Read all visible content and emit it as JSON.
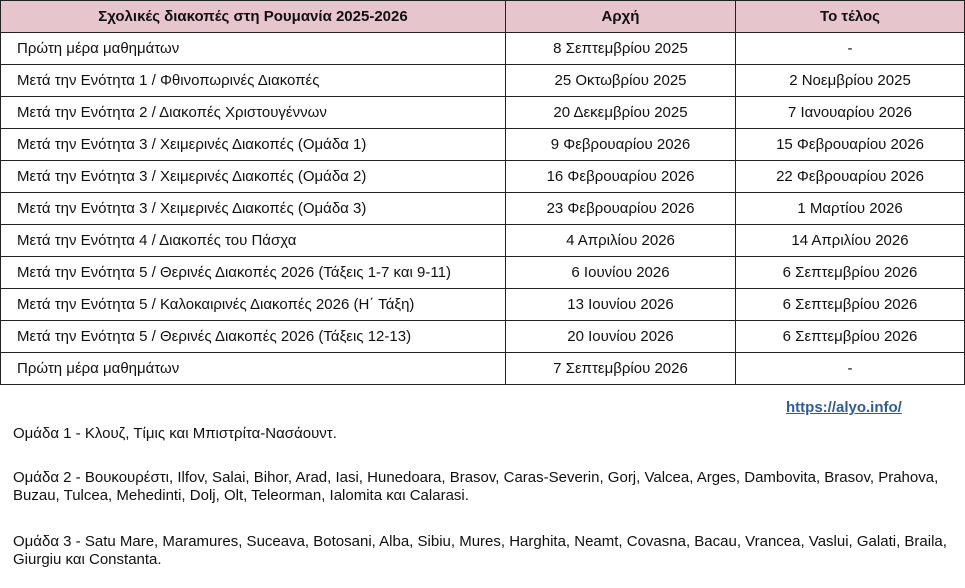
{
  "table": {
    "headers": [
      "Σχολικές διακοπές στη Ρουμανία 2025-2026",
      "Αρχή",
      "Το τέλος"
    ],
    "rows": [
      [
        "Πρώτη μέρα μαθημάτων",
        "8 Σεπτεμβρίου 2025",
        "-"
      ],
      [
        "Μετά την Ενότητα 1 / Φθινοπωρινές Διακοπές",
        "25 Οκτωβρίου 2025",
        "2 Νοεμβρίου 2025"
      ],
      [
        "Μετά την Ενότητα 2 / Διακοπές Χριστουγέννων",
        "20 Δεκεμβρίου 2025",
        "7 Ιανουαρίου 2026"
      ],
      [
        "Μετά την Ενότητα 3 / Χειμερινές Διακοπές (Ομάδα 1)",
        "9 Φεβρουαρίου 2026",
        "15 Φεβρουαρίου 2026"
      ],
      [
        "Μετά την Ενότητα 3 / Χειμερινές Διακοπές (Ομάδα 2)",
        "16 Φεβρουαρίου 2026",
        "22 Φεβρουαρίου 2026"
      ],
      [
        "Μετά την Ενότητα 3 / Χειμερινές Διακοπές (Ομάδα 3)",
        "23 Φεβρουαρίου 2026",
        "1 Μαρτίου 2026"
      ],
      [
        "Μετά την Ενότητα 4 / Διακοπές του Πάσχα",
        "4 Απριλίου 2026",
        "14 Απριλίου 2026"
      ],
      [
        "Μετά την Ενότητα 5 / Θερινές Διακοπές 2026 (Τάξεις 1-7 και 9-11)",
        "6 Ιουνίου 2026",
        "6 Σεπτεμβρίου 2026"
      ],
      [
        "Μετά την Ενότητα 5 / Καλοκαιρινές Διακοπές 2026 (Η΄ Τάξη)",
        "13 Ιουνίου 2026",
        "6 Σεπτεμβρίου 2026"
      ],
      [
        "Μετά την Ενότητα 5 / Θερινές Διακοπές 2026 (Τάξεις 12-13)",
        "20 Ιουνίου 2026",
        "6 Σεπτεμβρίου 2026"
      ],
      [
        "Πρώτη μέρα μαθημάτων",
        "7 Σεπτεμβρίου 2026",
        "-"
      ]
    ]
  },
  "link": " https://alyo.info/",
  "notes": [
    "Ομάδα 1 - Κλουζ, Τίμις και Μπιστρίτα-Νασάουντ.",
    "Ομάδα 2 - Βουκουρέστι, Ilfov, Salai, Bihor, Arad, Iasi, Hunedoara, Brasov, Caras-Severin, Gorj, Valcea, Arges, Dambovita, Brasov, Prahova, Buzau, Tulcea, Mehedinti, Dolj, Olt, Teleorman, Ialomita και Calarasi.",
    "Ομάδα 3 - Satu Mare, Maramures, Suceava, Botosani, Alba, Sibiu, Mures, Harghita, Neamt, Covasna, Bacau, Vrancea, Vaslui, Galati, Braila, Giurgiu και Constanta."
  ],
  "colors": {
    "header_bg": "#e6c5cd",
    "link": "#2f5c98"
  }
}
